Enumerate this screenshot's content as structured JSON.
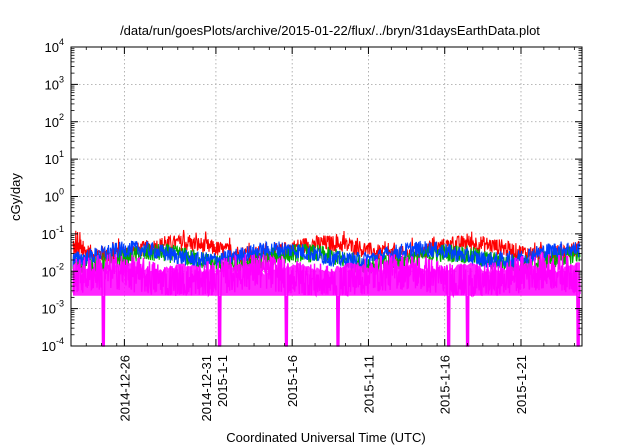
{
  "chart_data": {
    "type": "line",
    "title": "/data/run/goesPlots/archive/2015-01-22/flux/../bryn/31daysEarthData.plot",
    "xlabel": "Coordinated Universal Time (UTC)",
    "ylabel": "cGy/day",
    "xlim": [
      "2014-12-22T12:00",
      "2015-01-25T00:00"
    ],
    "x_ticks": [
      {
        "date": "2014-12-26",
        "label": "2014-12-26"
      },
      {
        "date": "2015-01-01",
        "label": "2014-12-31",
        "label2": "2015-1-1"
      },
      {
        "date": "2015-01-06",
        "label": "2015-1-6"
      },
      {
        "date": "2015-01-11",
        "label": "2015-1-11"
      },
      {
        "date": "2015-01-16",
        "label": "2015-1-16"
      },
      {
        "date": "2015-01-21",
        "label": "2015-1-21"
      }
    ],
    "y_scale": "log",
    "ylim": [
      0.0001,
      10000
    ],
    "y_ticks": [
      {
        "value": 0.0001,
        "base": "10",
        "exp": "-4"
      },
      {
        "value": 0.001,
        "base": "10",
        "exp": "-3"
      },
      {
        "value": 0.01,
        "base": "10",
        "exp": "-2"
      },
      {
        "value": 0.1,
        "base": "10",
        "exp": "-1"
      },
      {
        "value": 1,
        "base": "10",
        "exp": "0"
      },
      {
        "value": 10,
        "base": "10",
        "exp": "1"
      },
      {
        "value": 100,
        "base": "10",
        "exp": "2"
      },
      {
        "value": 1000,
        "base": "10",
        "exp": "3"
      },
      {
        "value": 10000,
        "base": "10",
        "exp": "4"
      }
    ],
    "grid": true,
    "series": [
      {
        "color": "#ff0000",
        "typical": 0.04,
        "spread": 0.22,
        "floor": null
      },
      {
        "color": "#00aa00",
        "typical": 0.022,
        "spread": 0.25,
        "floor": null
      },
      {
        "color": "#0040ff",
        "typical": 0.028,
        "spread": 0.22,
        "floor": null
      },
      {
        "color": "#ff00ff",
        "typical": 0.007,
        "spread": 0.5,
        "floor": 0.0022
      }
    ],
    "dropouts": [
      "2014-12-24T15:00",
      "2015-01-01T06:00",
      "2015-01-05T15:00",
      "2015-01-09T00:00",
      "2015-01-16T06:00",
      "2015-01-17T12:00",
      "2015-01-24T18:00"
    ]
  }
}
